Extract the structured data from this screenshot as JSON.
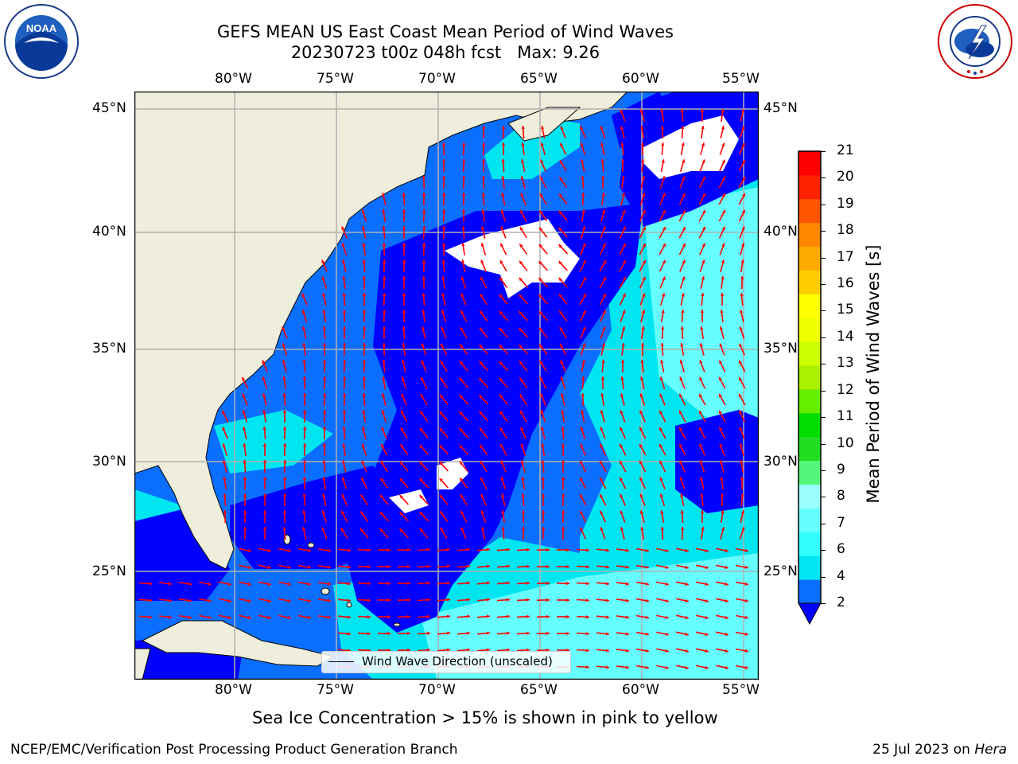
{
  "title": {
    "line1": "GEFS MEAN US East Coast Mean Period of Wind Waves",
    "line2": "20230723 t00z 048h fcst   Max: 9.26"
  },
  "map": {
    "lon_labels": [
      "80°W",
      "75°W",
      "70°W",
      "65°W",
      "60°W",
      "55°W"
    ],
    "lat_labels": [
      "45°N",
      "40°N",
      "35°N",
      "30°N",
      "25°N"
    ],
    "legend_label": "Wind Wave Direction (unscaled)",
    "arrow_color": "#ff0000",
    "land_color": "#efeddc"
  },
  "colorbar": {
    "label": "Mean Period of Wind Waves [s]",
    "ticks": [
      "2",
      "4",
      "6",
      "7",
      "8",
      "9",
      "10",
      "11",
      "12",
      "13",
      "14",
      "15",
      "16",
      "17",
      "18",
      "19",
      "20",
      "21"
    ],
    "colors": [
      "#0a6eff",
      "#00e6f0",
      "#33ffff",
      "#66ffff",
      "#9cffff",
      "#55f77a",
      "#22dd22",
      "#00dd00",
      "#66ee00",
      "#aaf000",
      "#ccff00",
      "#eeff00",
      "#ffff00",
      "#ffcc00",
      "#ffaa00",
      "#ff8800",
      "#ff5500",
      "#ff2200",
      "#ff0000"
    ],
    "under_color": "#0000ff"
  },
  "notes": {
    "sea_ice": "Sea Ice Concentration > 15% is shown in pink to yellow"
  },
  "footer": {
    "left": "NCEP/EMC/Verification Post Processing Product Generation Branch",
    "right_date": "25 Jul 2023 on ",
    "right_host": "Hera"
  },
  "logos": {
    "left_text": "NOAA",
    "right_text": "NATIONAL WEATHER SERVICE"
  }
}
